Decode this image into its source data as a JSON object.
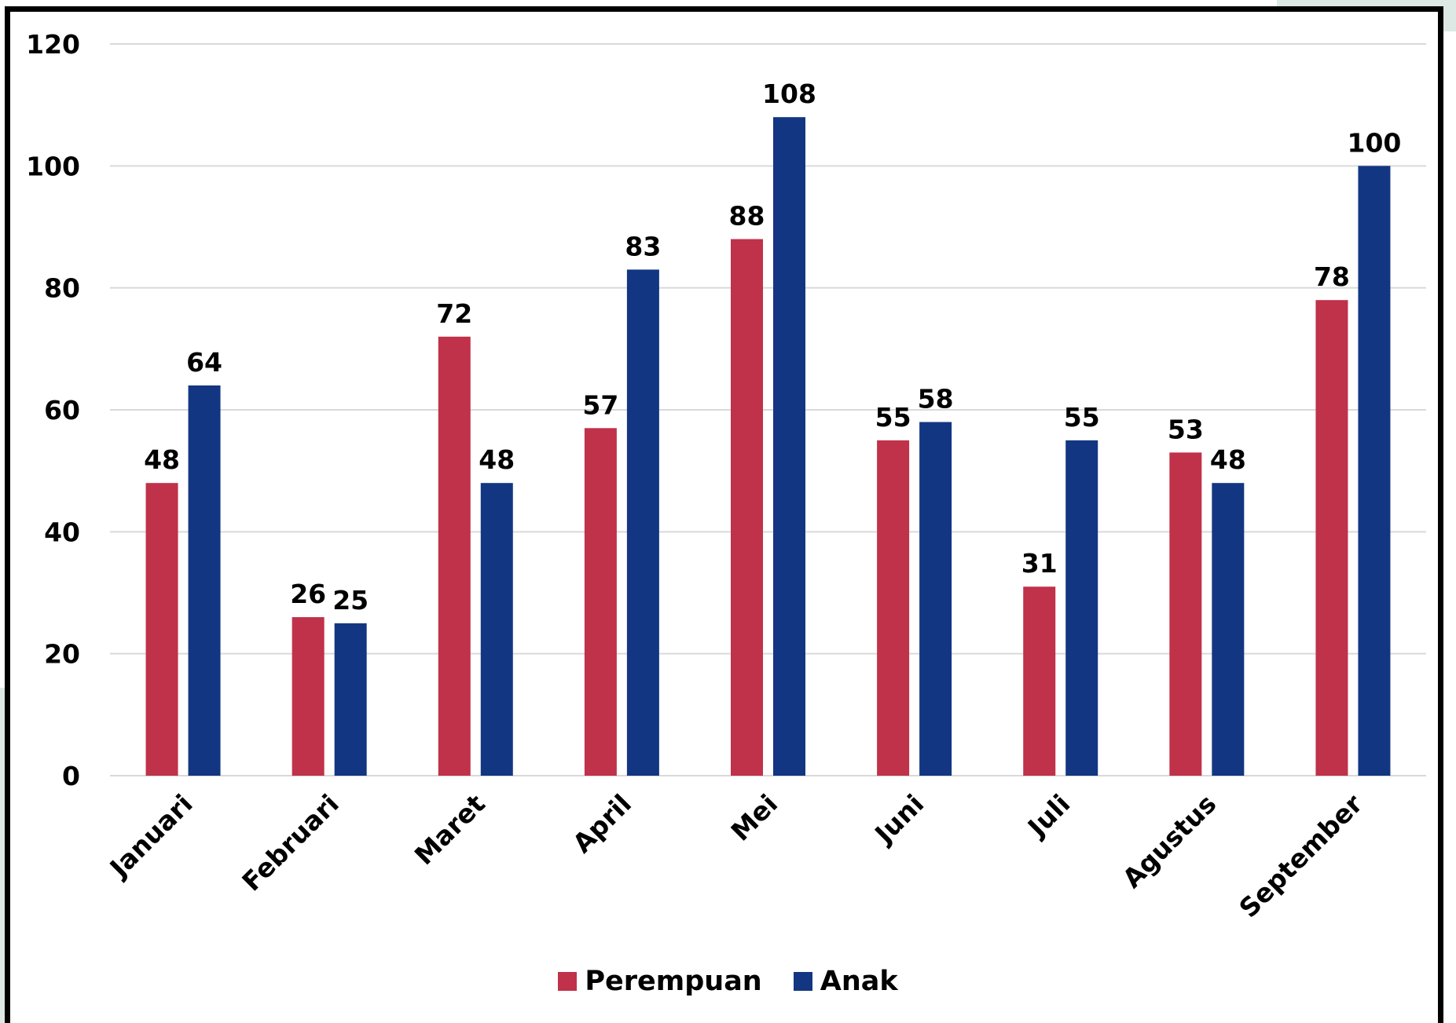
{
  "chart_data": {
    "type": "bar",
    "categories": [
      "Januari",
      "Februari",
      "Maret",
      "April",
      "Mei",
      "Juni",
      "Juli",
      "Agustus",
      "September"
    ],
    "series": [
      {
        "name": "Perempuan",
        "color": "#c0314a",
        "values": [
          48,
          26,
          72,
          57,
          88,
          55,
          31,
          53,
          78
        ]
      },
      {
        "name": "Anak",
        "color": "#133682",
        "values": [
          64,
          25,
          48,
          83,
          108,
          58,
          55,
          48,
          100
        ]
      }
    ],
    "yticks": [
      "0",
      "20",
      "40",
      "60",
      "80",
      "100",
      "120"
    ],
    "ylim": [
      0,
      120
    ],
    "grid": true,
    "legend_position": "bottom",
    "colors": {
      "grid": "#d9d9d9",
      "frame": "#000000",
      "corner_accent": "#dce9e4"
    }
  }
}
